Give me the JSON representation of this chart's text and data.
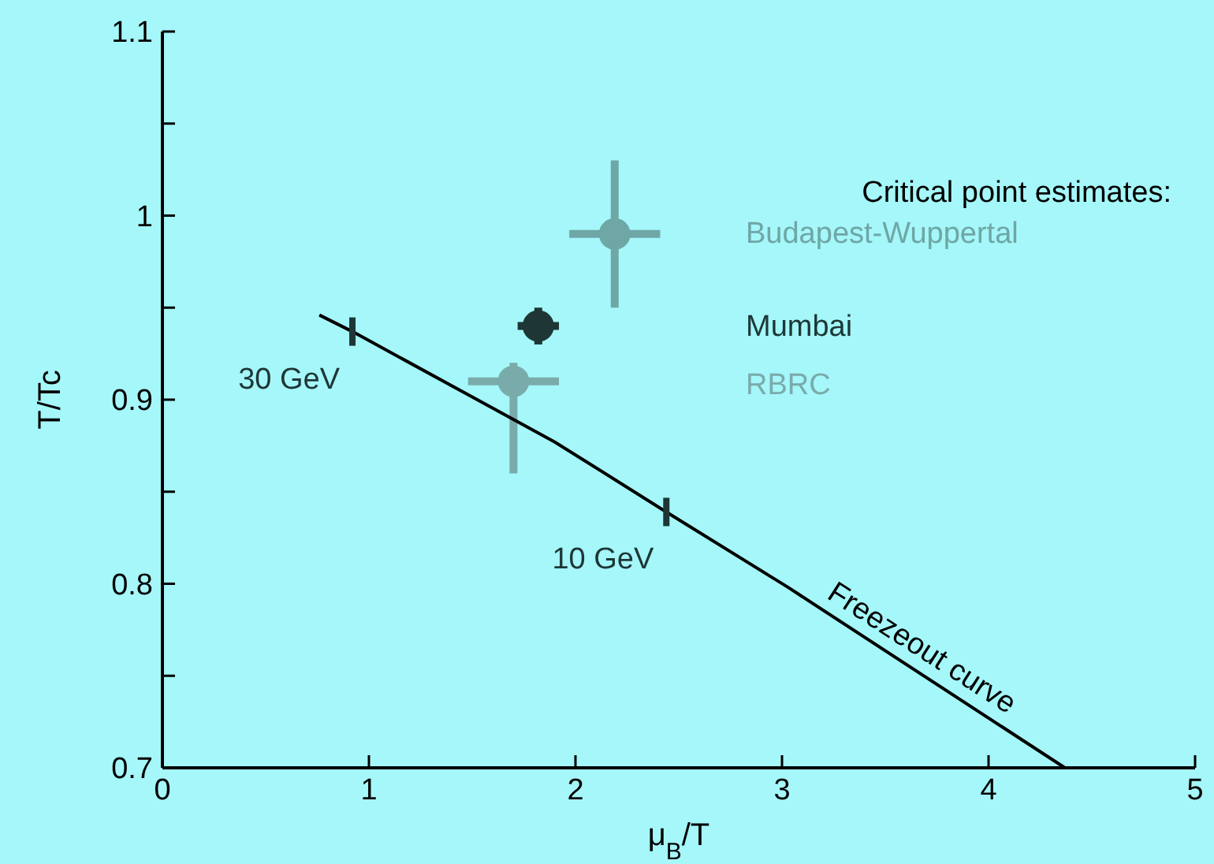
{
  "chart_data": {
    "type": "scatter",
    "xlabel": "μ$_{B}$/T",
    "ylabel": "T/Tc",
    "legend_title": "Critical point estimates:",
    "legend": "top right",
    "grid": false,
    "xlim": [
      0,
      5
    ],
    "xticks": [
      0,
      1,
      2,
      3,
      4,
      5
    ],
    "ylim": [
      0.7,
      1.1
    ],
    "yticks": [
      0.7,
      {
        "value": 0.75,
        "label": null
      },
      0.8,
      {
        "value": 0.85,
        "label": null
      },
      0.9,
      {
        "value": 0.95,
        "label": null
      },
      1,
      {
        "value": 1.05,
        "label": null
      },
      1.1
    ],
    "series": [
      {
        "name": "Budapest-Wuppertal",
        "marker": "circle",
        "color": "#6fa6a6",
        "x": [
          2.19
        ],
        "values": [
          0.99
        ],
        "errors": [
          0.04
        ],
        "xerrors": [
          0.22
        ]
      },
      {
        "name": "Mumbai",
        "marker": "circle",
        "color": "#1e3636",
        "x": [
          1.82
        ],
        "values": [
          0.94
        ],
        "errors": [
          0.01
        ],
        "xerrors": [
          0.1
        ]
      },
      {
        "name": "RBRC",
        "marker": "circle",
        "color": "#7aabab",
        "x": [
          1.7
        ],
        "values": [
          0.91
        ],
        "errors": [
          [
            0.86,
            0.92
          ]
        ],
        "xerrors": [
          0.22
        ]
      },
      {
        "type": "line",
        "color": "#000000",
        "x": [
          0.76,
          0.92,
          1.9,
          2.44,
          3.03,
          4.37
        ],
        "values": [
          0.946,
          0.937,
          0.877,
          0.839,
          0.798,
          0.7
        ]
      }
    ],
    "annotations": [
      {
        "text": "30 GeV",
        "x": 0.92,
        "y": 0.937
      },
      {
        "text": "10 GeV",
        "x": 2.44,
        "y": 0.839
      },
      {
        "text": "Freezeout curve",
        "x": 3.62,
        "y": 0.755
      }
    ]
  }
}
